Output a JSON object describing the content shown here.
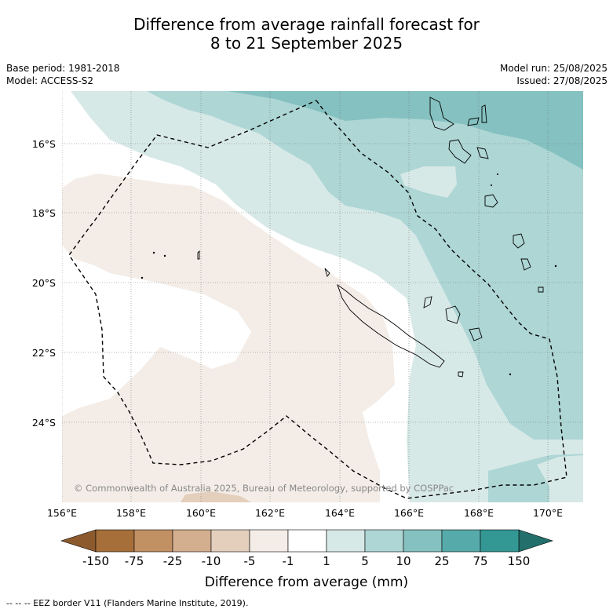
{
  "title_line1": "Difference from average rainfall forecast for",
  "title_line2": "8 to 21 September 2025",
  "meta_left": {
    "base_period": "Base period: 1981-2018",
    "model": "Model: ACCESS-S2"
  },
  "meta_right": {
    "model_run": "Model run: 25/08/2025",
    "issued": "Issued: 27/08/2025"
  },
  "map": {
    "lat_labels": [
      "16°S",
      "18°S",
      "20°S",
      "22°S",
      "24°S"
    ],
    "lon_labels": [
      "156°E",
      "158°E",
      "160°E",
      "162°E",
      "164°E",
      "166°E",
      "168°E",
      "170°E"
    ],
    "copyright": "© Commonwealth of Australia 2025, Bureau of Meteorology, supported by COSPPac"
  },
  "colorbar": {
    "tick_labels": [
      "-150",
      "-75",
      "-25",
      "-10",
      "-5",
      "-1",
      "1",
      "5",
      "10",
      "25",
      "75",
      "150"
    ],
    "colors": [
      "#a66f3a",
      "#c19063",
      "#d3ae8f",
      "#e4cfbd",
      "#f4ede7",
      "#ffffff",
      "#d7e9e7",
      "#add6d5",
      "#84c1c0",
      "#57aaaa",
      "#339794"
    ],
    "extend_low_color": "#8c5a2d",
    "extend_high_color": "#226f6b",
    "label": "Difference from average (mm)"
  },
  "footer": "--  --  -- EEZ border V11 (Flanders Marine Institute, 2019)."
}
